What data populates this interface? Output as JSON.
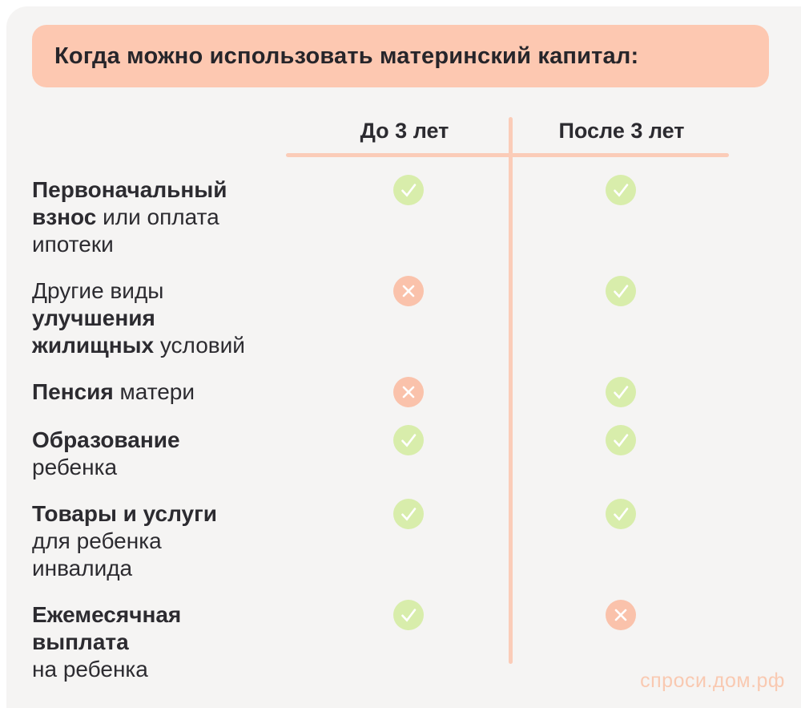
{
  "title": "Когда можно использовать материнский капитал:",
  "columns": {
    "before": "До 3 лет",
    "after": "После 3 лет"
  },
  "rows": [
    {
      "lines": [
        [
          {
            "t": "Первоначальный",
            "b": true
          }
        ],
        [
          {
            "t": "взнос",
            "b": true
          },
          {
            "t": " или оплата",
            "b": false
          }
        ],
        [
          {
            "t": "ипотеки",
            "b": false
          }
        ]
      ],
      "values": [
        "check",
        "check"
      ]
    },
    {
      "lines": [
        [
          {
            "t": "Другие виды",
            "b": false
          }
        ],
        [
          {
            "t": "улучшения",
            "b": true
          }
        ],
        [
          {
            "t": "жилищных",
            "b": true
          },
          {
            "t": " условий",
            "b": false
          }
        ]
      ],
      "values": [
        "cross",
        "check"
      ]
    },
    {
      "lines": [
        [
          {
            "t": "Пенсия",
            "b": true
          },
          {
            "t": " матери",
            "b": false
          }
        ]
      ],
      "values": [
        "cross",
        "check"
      ]
    },
    {
      "lines": [
        [
          {
            "t": "Образование",
            "b": true
          }
        ],
        [
          {
            "t": "ребенка",
            "b": false
          }
        ]
      ],
      "values": [
        "check",
        "check"
      ]
    },
    {
      "lines": [
        [
          {
            "t": "Товары и услуги",
            "b": true
          }
        ],
        [
          {
            "t": "для ребенка",
            "b": false
          }
        ],
        [
          {
            "t": "инвалида",
            "b": false
          }
        ]
      ],
      "values": [
        "check",
        "check"
      ]
    },
    {
      "lines": [
        [
          {
            "t": "Ежемесячная",
            "b": true
          }
        ],
        [
          {
            "t": "выплата",
            "b": true
          }
        ],
        [
          {
            "t": "на ребенка",
            "b": false
          }
        ]
      ],
      "values": [
        "check",
        "cross"
      ]
    }
  ],
  "watermark": "спроси.дом.рф",
  "colors": {
    "bg": "#f5f4f3",
    "banner": "#fdc8b1",
    "line": "#fbccb8",
    "check": "#d8edab",
    "cross": "#fac2ab",
    "text": "#2c2b30",
    "watermark": "#f9c9b1"
  },
  "chart_data": {
    "type": "table",
    "title": "Когда можно использовать материнский капитал:",
    "columns": [
      "До 3 лет",
      "После 3 лет"
    ],
    "rows": [
      {
        "label": "Первоначальный взнос или оплата ипотеки",
        "values": [
          true,
          true
        ]
      },
      {
        "label": "Другие виды улучшения жилищных условий",
        "values": [
          false,
          true
        ]
      },
      {
        "label": "Пенсия матери",
        "values": [
          false,
          true
        ]
      },
      {
        "label": "Образование ребенка",
        "values": [
          true,
          true
        ]
      },
      {
        "label": "Товары и услуги для ребенка инвалида",
        "values": [
          true,
          true
        ]
      },
      {
        "label": "Ежемесячная выплата на ребенка",
        "values": [
          true,
          false
        ]
      }
    ],
    "cell_symbols": {
      "true": "✓",
      "false": "✕"
    },
    "legend_position": "none",
    "grid": "peach dividers: vertical between columns, horizontal under headers"
  }
}
